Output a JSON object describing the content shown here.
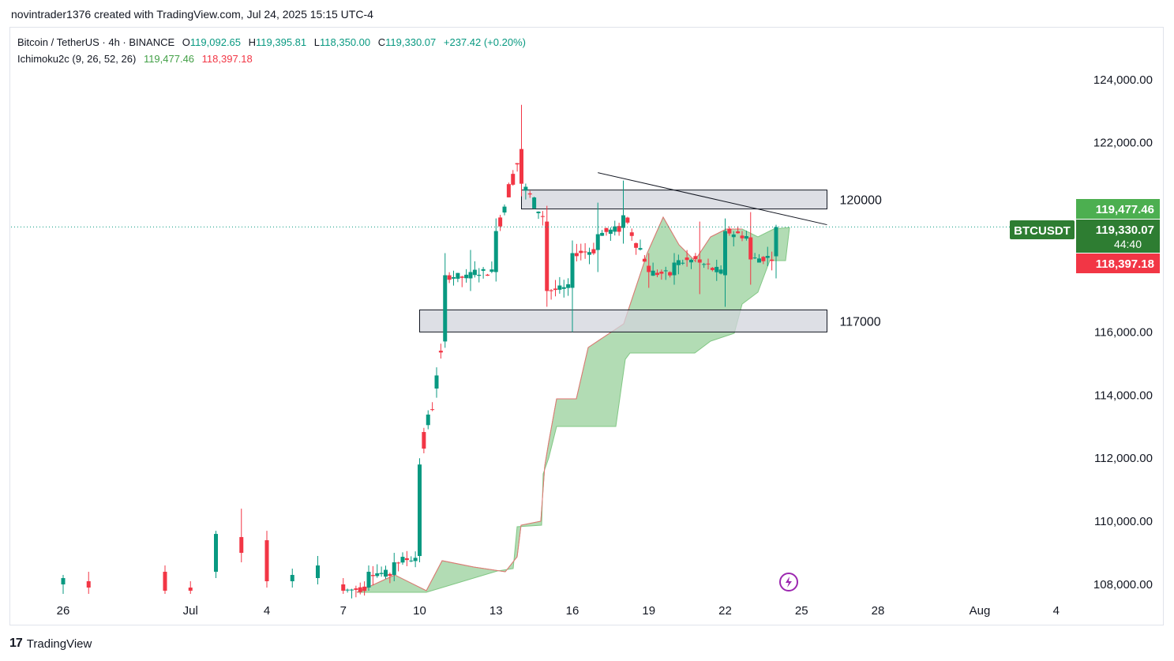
{
  "caption": "novintrader1376 created with TradingView.com, Jul 24, 2025 15:15 UTC-4",
  "legend": {
    "symbol": "Bitcoin / TetherUS · 4h · BINANCE",
    "o_label": "O",
    "o": "119,092.65",
    "h_label": "H",
    "h": "119,395.81",
    "l_label": "L",
    "l": "118,350.00",
    "c_label": "C",
    "c": "119,330.07",
    "change": "+237.42 (+0.20%)",
    "indicator": "Ichimoku2c (9, 26, 52, 26)",
    "ind_v1": "119,477.46",
    "ind_v2": "118,397.18"
  },
  "price_tags": {
    "upper": "119,477.46",
    "symbol": "BTCUSDT",
    "current": "119,330.07",
    "countdown": "44:40",
    "lower": "118,397.18"
  },
  "footer": {
    "logo": "17",
    "brand": "TradingView"
  },
  "colors": {
    "up": "#089981",
    "down": "#f23645",
    "cloud": "#a5d6a7",
    "cloud_edge": "#43a047",
    "kumo_red": "#e57373"
  },
  "chart_data": {
    "type": "candlestick",
    "timeframe": "4h",
    "ylim": [
      107700,
      125000
    ],
    "y_ticks": [
      {
        "value": 124000,
        "label": "124,000.00"
      },
      {
        "value": 122000,
        "label": "122,000.00"
      },
      {
        "value": 116000,
        "label": "116,000.00"
      },
      {
        "value": 114000,
        "label": "114,000.00"
      },
      {
        "value": 112000,
        "label": "112,000.00"
      },
      {
        "value": 110000,
        "label": "110,000.00"
      },
      {
        "value": 108000,
        "label": "108,000.00"
      }
    ],
    "x_ticks": [
      {
        "date": "2025-06-26",
        "label": "26"
      },
      {
        "date": "2025-07-01",
        "label": "Jul"
      },
      {
        "date": "2025-07-04",
        "label": "4"
      },
      {
        "date": "2025-07-07",
        "label": "7"
      },
      {
        "date": "2025-07-10",
        "label": "10"
      },
      {
        "date": "2025-07-13",
        "label": "13"
      },
      {
        "date": "2025-07-16",
        "label": "16"
      },
      {
        "date": "2025-07-19",
        "label": "19"
      },
      {
        "date": "2025-07-22",
        "label": "22"
      },
      {
        "date": "2025-07-25",
        "label": "25"
      },
      {
        "date": "2025-07-28",
        "label": "28"
      },
      {
        "date": "2025-08-01",
        "label": "Aug"
      },
      {
        "date": "2025-08-04",
        "label": "4"
      }
    ],
    "x_range": [
      "2025-06-26",
      "2025-08-04"
    ],
    "zones": [
      {
        "label": "120000",
        "from": "2025-07-14",
        "to": "2025-07-26",
        "low": 119900,
        "high": 120500
      },
      {
        "label": "117000",
        "from": "2025-07-10",
        "to": "2025-07-26",
        "low": 116000,
        "high": 116700
      }
    ],
    "trendline": {
      "from": {
        "date": "2025-07-17",
        "value": 121050
      },
      "to": {
        "date": "2025-07-26",
        "value": 119400
      }
    },
    "current_price": 119330.07,
    "candles": [
      {
        "date": "2025-07-07",
        "o": 108000,
        "c": 107800,
        "h": 108200,
        "l": 107700
      },
      {
        "date": "2025-07-08",
        "o": 107900,
        "c": 108400,
        "h": 108600,
        "l": 107800
      },
      {
        "date": "2025-07-09",
        "o": 108300,
        "c": 108700,
        "h": 109000,
        "l": 108100
      },
      {
        "date": "2025-07-10",
        "o": 108900,
        "c": 111800,
        "h": 112000,
        "l": 108700
      },
      {
        "date": "2025-07-11",
        "o": 115700,
        "c": 117800,
        "h": 118500,
        "l": 115500
      },
      {
        "date": "2025-07-12",
        "o": 117700,
        "c": 117900,
        "h": 118600,
        "l": 117300
      },
      {
        "date": "2025-07-13",
        "o": 117900,
        "c": 119200,
        "h": 119600,
        "l": 117600
      },
      {
        "date": "2025-07-14",
        "o": 121800,
        "c": 120700,
        "h": 123200,
        "l": 120300
      },
      {
        "date": "2025-07-15",
        "o": 119500,
        "c": 117300,
        "h": 120000,
        "l": 116800
      },
      {
        "date": "2025-07-16",
        "o": 117400,
        "c": 118500,
        "h": 118900,
        "l": 116000
      },
      {
        "date": "2025-07-17",
        "o": 118600,
        "c": 119100,
        "h": 120100,
        "l": 117900
      },
      {
        "date": "2025-07-18",
        "o": 119300,
        "c": 119700,
        "h": 120800,
        "l": 118800
      },
      {
        "date": "2025-07-19",
        "o": 118100,
        "c": 117900,
        "h": 118500,
        "l": 117400
      },
      {
        "date": "2025-07-20",
        "o": 117800,
        "c": 118200,
        "h": 118500,
        "l": 117500
      },
      {
        "date": "2025-07-21",
        "o": 118300,
        "c": 118200,
        "h": 119500,
        "l": 117200
      },
      {
        "date": "2025-07-22",
        "o": 117800,
        "c": 119200,
        "h": 119600,
        "l": 116800
      },
      {
        "date": "2025-07-23",
        "o": 119000,
        "c": 118300,
        "h": 119800,
        "l": 117500
      },
      {
        "date": "2025-07-24",
        "o": 118400,
        "c": 119330,
        "h": 119400,
        "l": 117700
      }
    ]
  }
}
